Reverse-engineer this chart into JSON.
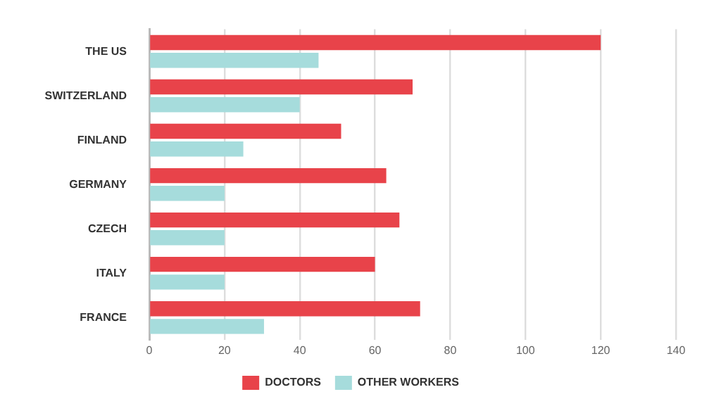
{
  "chart_data": {
    "type": "bar",
    "orientation": "horizontal",
    "categories": [
      "THE US",
      "SWITZERLAND",
      "FINLAND",
      "GERMANY",
      "CZECH",
      "ITALY",
      "FRANCE"
    ],
    "series": [
      {
        "name": "DOCTORS",
        "color": "#e8434a",
        "values": [
          120,
          70,
          51,
          63,
          66.5,
          60,
          72
        ]
      },
      {
        "name": "OTHER WORKERS",
        "color": "#a6dcdc",
        "values": [
          45,
          40,
          25,
          20,
          20,
          20,
          30.5
        ]
      }
    ],
    "xlim": [
      0,
      140
    ],
    "xticks": [
      0,
      20,
      40,
      60,
      80,
      100,
      120,
      140
    ],
    "grid": "x",
    "legend": "bottom"
  }
}
